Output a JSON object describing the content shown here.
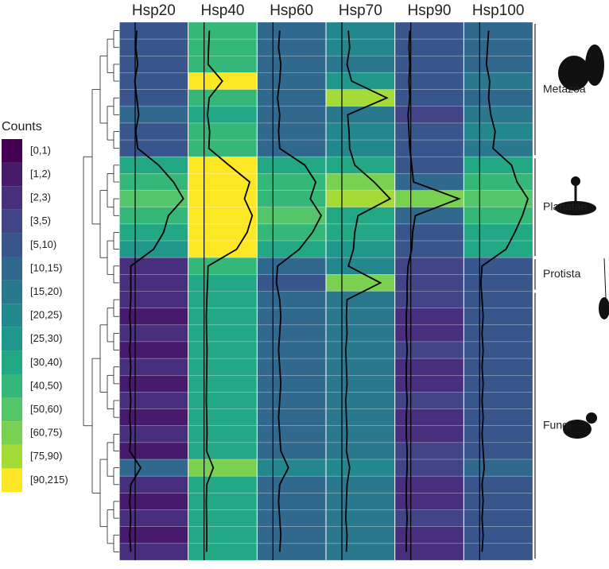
{
  "chart_data": {
    "type": "heatmap",
    "columns": [
      "Hsp20",
      "Hsp40",
      "Hsp60",
      "Hsp70",
      "Hsp90",
      "Hsp100"
    ],
    "legend_title": "Counts",
    "bin_edges": [
      0,
      1,
      2,
      3,
      5,
      10,
      15,
      20,
      25,
      30,
      40,
      50,
      60,
      75,
      90,
      215
    ],
    "bin_labels": [
      "[0,1)",
      "[1,2)",
      "[2,3)",
      "[3,5)",
      "[5,10)",
      "[10,15)",
      "[15,20)",
      "[20,25)",
      "[25,30)",
      "[30,40)",
      "[40,50)",
      "[50,60)",
      "[60,75)",
      "[75,90)",
      "[90,215)"
    ],
    "colors": [
      "#440154",
      "#481a6c",
      "#472f7d",
      "#414487",
      "#39568c",
      "#31688e",
      "#2a788e",
      "#23888e",
      "#1f988b",
      "#22a884",
      "#35b779",
      "#54c568",
      "#7ad151",
      "#a5db36",
      "#fde725"
    ],
    "groups": [
      {
        "name": "Metazoa",
        "values": [
          [
            8,
            45,
            12,
            20,
            6,
            14
          ],
          [
            7,
            42,
            11,
            22,
            5,
            13
          ],
          [
            9,
            40,
            13,
            18,
            6,
            12
          ],
          [
            6,
            95,
            12,
            25,
            5,
            15
          ],
          [
            8,
            44,
            10,
            80,
            6,
            14
          ],
          [
            10,
            38,
            12,
            19,
            4,
            16
          ],
          [
            7,
            46,
            11,
            21,
            5,
            20
          ],
          [
            9,
            43,
            12,
            22,
            6,
            18
          ]
        ]
      },
      {
        "name": "Planatae",
        "values": [
          [
            30,
            120,
            35,
            30,
            8,
            35
          ],
          [
            45,
            200,
            45,
            60,
            10,
            40
          ],
          [
            55,
            180,
            40,
            85,
            60,
            50
          ],
          [
            40,
            210,
            50,
            35,
            12,
            45
          ],
          [
            35,
            190,
            42,
            30,
            9,
            38
          ],
          [
            25,
            150,
            30,
            28,
            8,
            30
          ]
        ]
      },
      {
        "name": "Protista",
        "values": [
          [
            2,
            40,
            10,
            20,
            4,
            8
          ],
          [
            2,
            38,
            9,
            70,
            3,
            7
          ]
        ]
      },
      {
        "name": "Fungi",
        "values": [
          [
            2,
            35,
            12,
            18,
            3,
            8
          ],
          [
            1,
            33,
            13,
            17,
            2,
            9
          ],
          [
            2,
            34,
            12,
            18,
            2,
            8
          ],
          [
            1,
            36,
            11,
            16,
            3,
            9
          ],
          [
            2,
            35,
            12,
            17,
            2,
            8
          ],
          [
            1,
            34,
            13,
            18,
            2,
            9
          ],
          [
            2,
            33,
            12,
            16,
            3,
            8
          ],
          [
            1,
            35,
            11,
            17,
            2,
            9
          ],
          [
            2,
            36,
            12,
            18,
            2,
            8
          ],
          [
            1,
            34,
            13,
            17,
            3,
            9
          ],
          [
            12,
            60,
            20,
            22,
            3,
            10
          ],
          [
            2,
            35,
            12,
            18,
            2,
            8
          ],
          [
            1,
            33,
            11,
            17,
            2,
            9
          ],
          [
            2,
            34,
            12,
            16,
            3,
            8
          ],
          [
            1,
            35,
            13,
            18,
            2,
            9
          ],
          [
            2,
            34,
            12,
            17,
            2,
            8
          ]
        ]
      }
    ]
  }
}
